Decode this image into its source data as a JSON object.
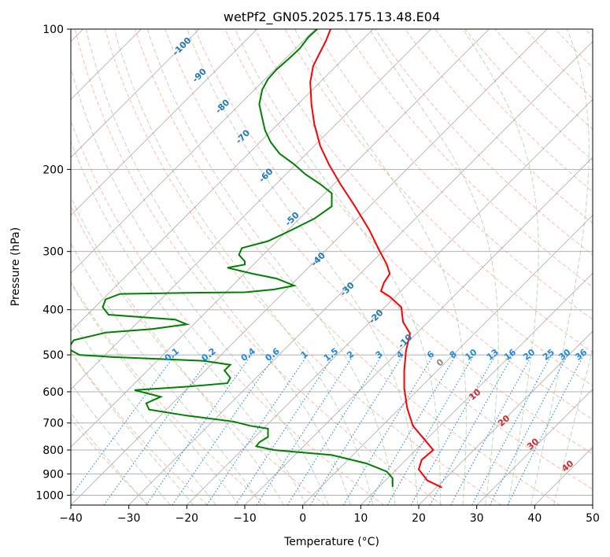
{
  "chart_data": {
    "type": "line",
    "title": "wetPf2_GN05.2025.175.13.48.E04",
    "xlabel": "Temperature (°C)",
    "ylabel": "Pressure (hPa)",
    "xlim": [
      -40,
      50
    ],
    "ylim": [
      1050,
      100
    ],
    "y_scale": "log",
    "grid": true,
    "x_ticks": [
      "−40",
      "−30",
      "−20",
      "−10",
      "0",
      "10",
      "20",
      "30",
      "40",
      "50"
    ],
    "y_ticks": [
      "100",
      "200",
      "300",
      "400",
      "500",
      "600",
      "700",
      "800",
      "900",
      "1000"
    ],
    "colors": {
      "temperature": "#ff0000",
      "dewpoint": "#008000",
      "isotherm": "#888888",
      "dry_adiabat": "#ff9070",
      "moist_adiabat": "#80c080",
      "mixing_ratio": "#1e88e5",
      "isotherm_label": "#1f77b4",
      "grid": "#b0b0b0"
    },
    "series": [
      {
        "id": "temperature",
        "points": [
          [
            24.0,
            963
          ],
          [
            21.5,
            930
          ],
          [
            20.0,
            880
          ],
          [
            20.5,
            840
          ],
          [
            22.5,
            800
          ],
          [
            21.0,
            760
          ],
          [
            19.0,
            710
          ],
          [
            18.0,
            650
          ],
          [
            17.5,
            590
          ],
          [
            17.5,
            540
          ],
          [
            17.8,
            490
          ],
          [
            18.5,
            450
          ],
          [
            17.3,
            425
          ],
          [
            17.0,
            395
          ],
          [
            15.0,
            375
          ],
          [
            13.5,
            365
          ],
          [
            14.0,
            350
          ],
          [
            15.0,
            335
          ],
          [
            14.5,
            320
          ],
          [
            13.0,
            295
          ],
          [
            11.5,
            270
          ],
          [
            9.0,
            240
          ],
          [
            6.5,
            215
          ],
          [
            4.5,
            195
          ],
          [
            3.0,
            178
          ],
          [
            2.0,
            160
          ],
          [
            1.5,
            145
          ],
          [
            1.3,
            130
          ],
          [
            1.8,
            120
          ],
          [
            3.0,
            112
          ],
          [
            4.0,
            106
          ],
          [
            4.8,
            100
          ]
        ]
      },
      {
        "id": "dewpoint",
        "points": [
          [
            15.5,
            960
          ],
          [
            15.5,
            920
          ],
          [
            14.5,
            890
          ],
          [
            11.0,
            855
          ],
          [
            5.0,
            820
          ],
          [
            -5.0,
            800
          ],
          [
            -8.0,
            785
          ],
          [
            -7.5,
            770
          ],
          [
            -6.0,
            750
          ],
          [
            -6.0,
            720
          ],
          [
            -9.0,
            710
          ],
          [
            -12.0,
            695
          ],
          [
            -20.0,
            675
          ],
          [
            -26.5,
            655
          ],
          [
            -27.0,
            635
          ],
          [
            -24.5,
            615
          ],
          [
            -29.0,
            595
          ],
          [
            -20.0,
            585
          ],
          [
            -13.0,
            575
          ],
          [
            -12.5,
            560
          ],
          [
            -13.5,
            540
          ],
          [
            -12.5,
            525
          ],
          [
            -17.0,
            515
          ],
          [
            -33.0,
            505
          ],
          [
            -38.5,
            500
          ],
          [
            -40.5,
            485
          ],
          [
            -39.5,
            465
          ],
          [
            -34.0,
            448
          ],
          [
            -26.0,
            440
          ],
          [
            -20.0,
            430
          ],
          [
            -22.0,
            420
          ],
          [
            -33.5,
            410
          ],
          [
            -34.5,
            395
          ],
          [
            -34.0,
            380
          ],
          [
            -31.5,
            370
          ],
          [
            -20.0,
            368
          ],
          [
            -10.0,
            367
          ],
          [
            -5.0,
            362
          ],
          [
            -1.5,
            355
          ],
          [
            -4.5,
            343
          ],
          [
            -8.5,
            335
          ],
          [
            -13.0,
            325
          ],
          [
            -10.0,
            320
          ],
          [
            -10.0,
            315
          ],
          [
            -11.0,
            305
          ],
          [
            -10.5,
            295
          ],
          [
            -6.0,
            285
          ],
          [
            -2.0,
            270
          ],
          [
            2.0,
            255
          ],
          [
            5.0,
            240
          ],
          [
            5.0,
            225
          ],
          [
            3.0,
            215
          ],
          [
            0.5,
            205
          ],
          [
            -1.5,
            195
          ],
          [
            -4.0,
            185
          ],
          [
            -5.5,
            175
          ],
          [
            -6.5,
            165
          ],
          [
            -7.0,
            155
          ],
          [
            -7.5,
            145
          ],
          [
            -7.0,
            135
          ],
          [
            -6.0,
            128
          ],
          [
            -4.5,
            122
          ],
          [
            -2.5,
            116
          ],
          [
            -0.5,
            110
          ],
          [
            1.0,
            104
          ],
          [
            2.5,
            100
          ]
        ]
      }
    ],
    "isotherm_labels": [
      {
        "text": "-100",
        "x": -20.5,
        "y": 110
      },
      {
        "text": "-90",
        "x": -17.5,
        "y": 127
      },
      {
        "text": "-80",
        "x": -13.5,
        "y": 148
      },
      {
        "text": "-70",
        "x": -10.0,
        "y": 172
      },
      {
        "text": "-60",
        "x": -6.0,
        "y": 208
      },
      {
        "text": "-50",
        "x": -1.5,
        "y": 258
      },
      {
        "text": "-40",
        "x": 3.0,
        "y": 315
      },
      {
        "text": "-30",
        "x": 8.0,
        "y": 365
      },
      {
        "text": "-20",
        "x": 13.0,
        "y": 418
      },
      {
        "text": "-10",
        "x": 18.0,
        "y": 472
      }
    ],
    "mixing_ratio_labels": [
      "0.1",
      "0.2",
      "0.4",
      "0.6",
      "1",
      "1.5",
      "2",
      "3",
      "4",
      "6",
      "8",
      "10",
      "13",
      "16",
      "20",
      "25",
      "30",
      "36"
    ],
    "dry_adiabat_labels": [
      {
        "text": "0",
        "color": "#888888"
      },
      {
        "text": "10",
        "color": "#d62728"
      },
      {
        "text": "20",
        "color": "#d62728"
      },
      {
        "text": "30",
        "color": "#d62728"
      },
      {
        "text": "40",
        "color": "#d62728"
      }
    ]
  }
}
